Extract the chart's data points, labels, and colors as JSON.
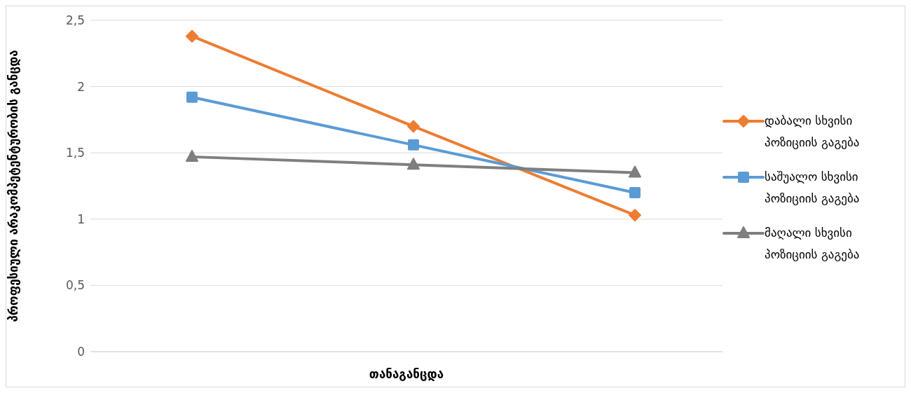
{
  "chart_data": {
    "type": "line",
    "xlabel": "თანაგანცდა",
    "ylabel": "პროფესიული არაკომპეტენტურობის განცდა",
    "categories": [
      null,
      null,
      null
    ],
    "series": [
      {
        "name": "დაბალი სხვისი პოზიციის გაგება",
        "color": "#ed7d31",
        "marker": "diamond",
        "values": [
          2.38,
          1.7,
          1.03
        ]
      },
      {
        "name": "საშუალო სხვისი პოზიციის გაგება",
        "color": "#5b9bd5",
        "marker": "square",
        "values": [
          1.92,
          1.56,
          1.2
        ]
      },
      {
        "name": "მაღალი სხვისი პოზიციის გაგება",
        "color": "#7f7f7f",
        "marker": "triangle",
        "values": [
          1.47,
          1.41,
          1.35
        ]
      }
    ],
    "ylim": [
      0,
      2.5
    ],
    "yticks": [
      {
        "value": 0,
        "label": "0"
      },
      {
        "value": 0.5,
        "label": "0,5"
      },
      {
        "value": 1,
        "label": "1"
      },
      {
        "value": 1.5,
        "label": "1,5"
      },
      {
        "value": 2,
        "label": "2"
      },
      {
        "value": 2.5,
        "label": "2,5"
      }
    ],
    "grid": "y",
    "legend": "right",
    "line_style": "solid"
  }
}
